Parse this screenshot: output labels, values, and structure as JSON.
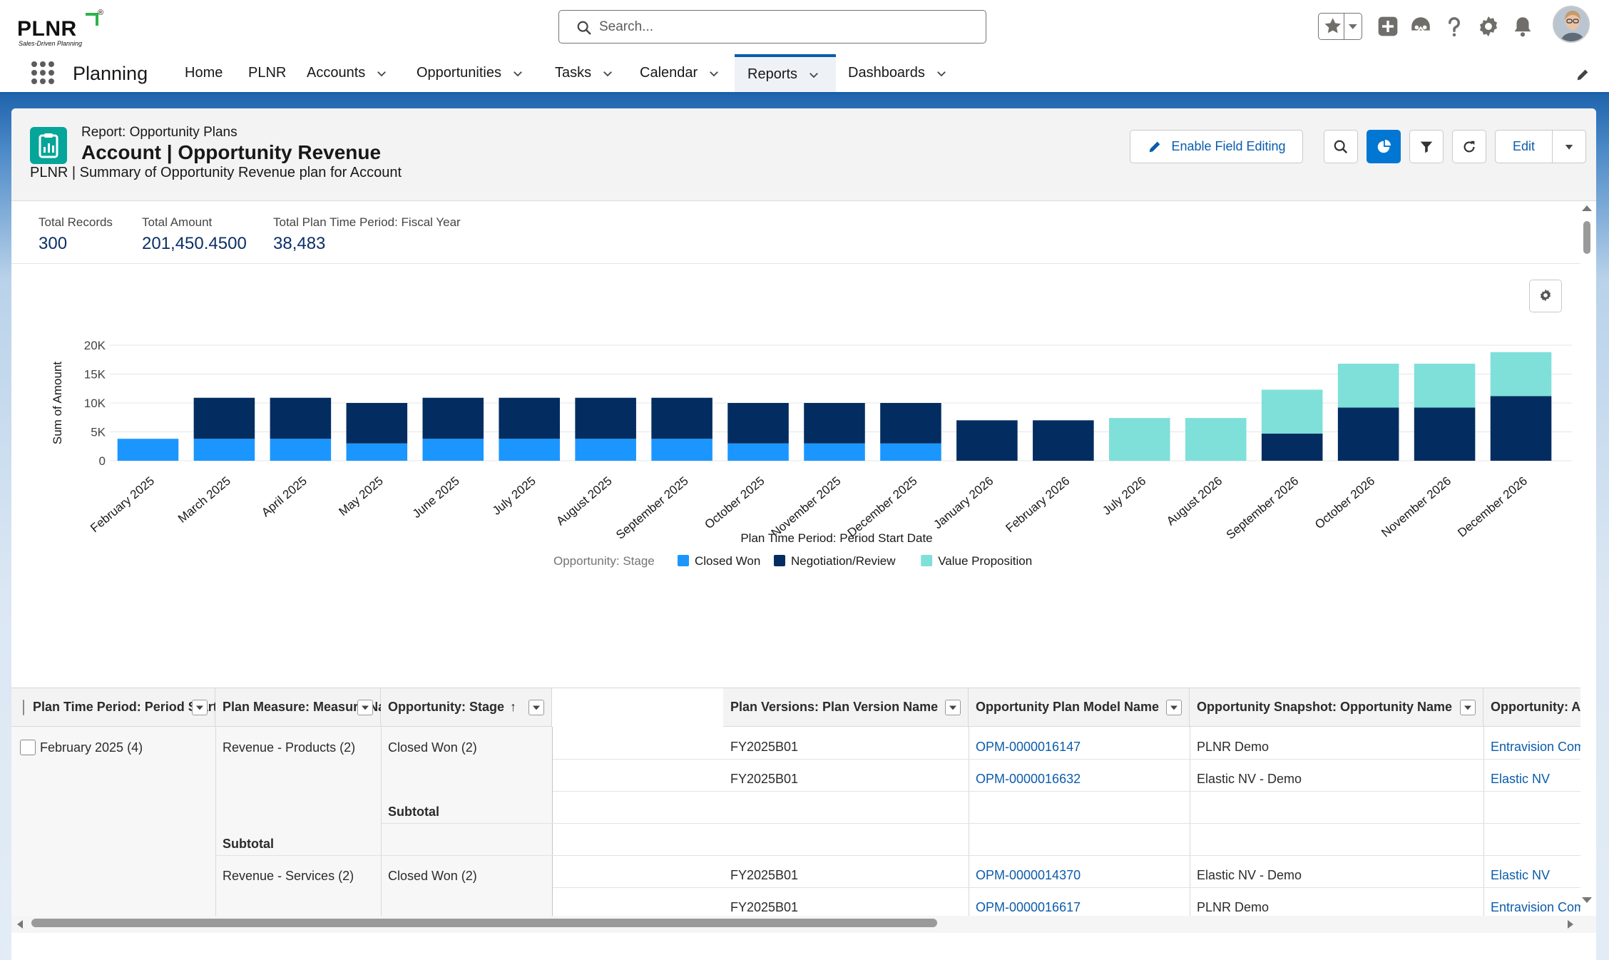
{
  "header": {
    "logo_text": "PLNR",
    "logo_tagline": "Sales-Driven Planning",
    "search_placeholder": "Search..."
  },
  "nav": {
    "app_name": "Planning",
    "items": [
      {
        "label": "Home",
        "dropdown": false
      },
      {
        "label": "PLNR",
        "dropdown": false
      },
      {
        "label": "Accounts",
        "dropdown": true
      },
      {
        "label": "Opportunities",
        "dropdown": true
      },
      {
        "label": "Tasks",
        "dropdown": true
      },
      {
        "label": "Calendar",
        "dropdown": true
      },
      {
        "label": "Reports",
        "dropdown": true,
        "active": true
      },
      {
        "label": "Dashboards",
        "dropdown": true
      }
    ]
  },
  "report": {
    "kicker": "Report: Opportunity Plans",
    "title": "Account | Opportunity Revenue",
    "description": "PLNR | Summary of Opportunity Revenue plan for Account",
    "buttons": {
      "enable_field_editing": "Enable Field Editing",
      "edit": "Edit"
    },
    "icons": [
      "search-icon",
      "chart-icon",
      "filter-icon",
      "refresh-icon",
      "chevron-down-icon"
    ]
  },
  "stats": [
    {
      "label": "Total Records",
      "value": "300"
    },
    {
      "label": "Total Amount",
      "value": "201,450.4500"
    },
    {
      "label": "Total Plan Time Period: Fiscal Year",
      "value": "38,483"
    }
  ],
  "chart_data": {
    "type": "bar",
    "stacked": true,
    "categories": [
      "February 2025",
      "March 2025",
      "April 2025",
      "May 2025",
      "June 2025",
      "July 2025",
      "August 2025",
      "September 2025",
      "October 2025",
      "November 2025",
      "December 2025",
      "January 2026",
      "February 2026",
      "July 2026",
      "August 2026",
      "September 2026",
      "October 2026",
      "November 2026",
      "December 2026"
    ],
    "series": [
      {
        "name": "Closed Won",
        "color": "#1b96ff",
        "values": [
          3800,
          3800,
          3800,
          3000,
          3800,
          3800,
          3800,
          3800,
          3000,
          3000,
          3000,
          0,
          0,
          0,
          0,
          0,
          0,
          0,
          0
        ]
      },
      {
        "name": "Negotiation/Review",
        "color": "#032d60",
        "values": [
          0,
          7100,
          7100,
          7000,
          7100,
          7100,
          7100,
          7100,
          7000,
          7000,
          7000,
          7000,
          7000,
          0,
          0,
          4700,
          9200,
          9200,
          11200
        ]
      },
      {
        "name": "Value Proposition",
        "color": "#7ee0d9",
        "values": [
          0,
          0,
          0,
          0,
          0,
          0,
          0,
          0,
          0,
          0,
          0,
          0,
          0,
          7400,
          7400,
          7600,
          7600,
          7600,
          7600
        ]
      }
    ],
    "xlabel": "Plan Time Period: Period Start Date",
    "ylabel": "Sum of Amount",
    "yticks": [
      "0",
      "5K",
      "10K",
      "15K",
      "20K"
    ],
    "ylim": [
      0,
      20000
    ],
    "legend_title": "Opportunity: Stage",
    "legend_position": "bottom",
    "grid": true
  },
  "table": {
    "columns": [
      {
        "label": "Plan Time Period: Period Start Date",
        "sort": "↑"
      },
      {
        "label": "Plan Measure: Measure Name",
        "sort": "↑"
      },
      {
        "label": "Opportunity: Stage",
        "sort": "↑"
      },
      {
        "label": "Plan Versions: Plan Version Name",
        "sort": ""
      },
      {
        "label": "Opportunity Plan Model Name",
        "sort": ""
      },
      {
        "label": "Opportunity Snapshot: Opportunity Name",
        "sort": ""
      },
      {
        "label": "Opportunity: Ac",
        "sort": ""
      }
    ],
    "group_period": "February 2025 (4)",
    "measure_1": "Revenue - Products (2)",
    "measure_2": "Revenue - Services (2)",
    "stage_1": "Closed Won (2)",
    "stage_2": "Closed Won (2)",
    "subtotal": "Subtotal",
    "rows": [
      {
        "version": "FY2025B01",
        "model": "OPM-0000016147",
        "opp": "PLNR Demo",
        "account": "Entravision Comr"
      },
      {
        "version": "FY2025B01",
        "model": "OPM-0000016632",
        "opp": "Elastic NV - Demo",
        "account": "Elastic NV"
      },
      {
        "version": "FY2025B01",
        "model": "OPM-0000014370",
        "opp": "Elastic NV - Demo",
        "account": "Elastic NV"
      },
      {
        "version": "FY2025B01",
        "model": "OPM-0000016617",
        "opp": "PLNR Demo",
        "account": "Entravision Comr"
      }
    ]
  }
}
